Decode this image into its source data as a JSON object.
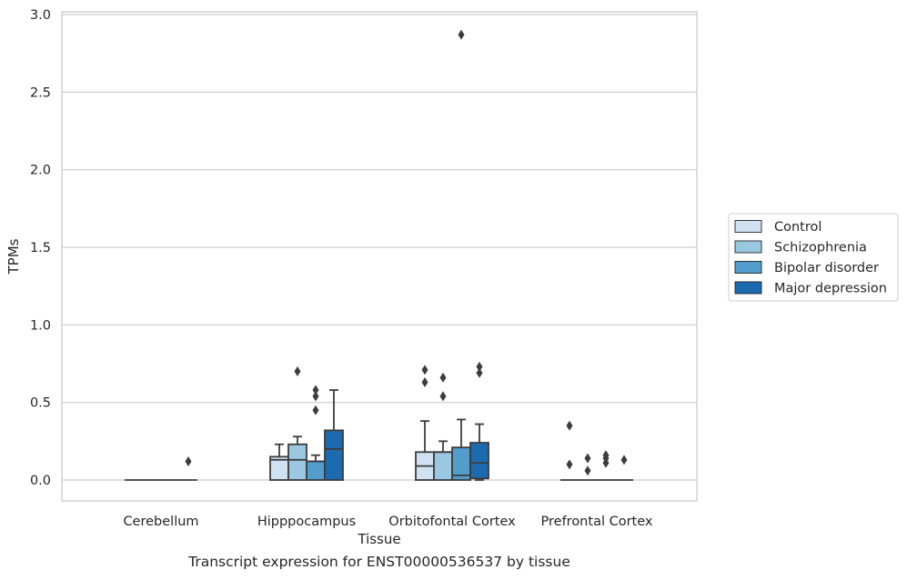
{
  "chart_data": {
    "type": "box",
    "title": "",
    "caption": "Transcript expression for ENST00000536537 by tissue",
    "xlabel": "Tissue",
    "ylabel": "TPMs",
    "ylim": [
      -0.13,
      3.03
    ],
    "yticks": [
      "0.0",
      "0.5",
      "1.0",
      "1.5",
      "2.0",
      "2.5",
      "3.0"
    ],
    "categories": [
      "Cerebellum",
      "Hipppocampus",
      "Orbitofontal Cortex",
      "Prefrontal Cortex"
    ],
    "grid": true,
    "legend_position": "right",
    "series": [
      {
        "name": "Control",
        "color": "#d0e1f2",
        "boxes": [
          {
            "q1": 0,
            "median": 0,
            "q3": 0,
            "whislo": 0,
            "whishi": 0,
            "fliers": []
          },
          {
            "q1": 0,
            "median": 0.13,
            "q3": 0.15,
            "whislo": 0,
            "whishi": 0.23,
            "fliers": []
          },
          {
            "q1": 0,
            "median": 0.09,
            "q3": 0.18,
            "whislo": 0,
            "whishi": 0.38,
            "fliers": [
              0.63,
              0.71
            ]
          },
          {
            "q1": 0,
            "median": 0,
            "q3": 0,
            "whislo": 0,
            "whishi": 0,
            "fliers": [
              0.35,
              0.1
            ]
          }
        ]
      },
      {
        "name": "Schizophrenia",
        "color": "#9ac8e0",
        "boxes": [
          {
            "q1": 0,
            "median": 0,
            "q3": 0,
            "whislo": 0,
            "whishi": 0,
            "fliers": []
          },
          {
            "q1": 0,
            "median": 0.13,
            "q3": 0.23,
            "whislo": 0,
            "whishi": 0.28,
            "fliers": [
              0.7
            ]
          },
          {
            "q1": 0,
            "median": 0.18,
            "q3": 0.18,
            "whislo": 0,
            "whishi": 0.25,
            "fliers": [
              0.54,
              0.66
            ]
          },
          {
            "q1": 0,
            "median": 0,
            "q3": 0,
            "whislo": 0,
            "whishi": 0,
            "fliers": [
              0.14,
              0.06
            ]
          }
        ]
      },
      {
        "name": "Bipolar disorder",
        "color": "#529dcc",
        "boxes": [
          {
            "q1": 0,
            "median": 0,
            "q3": 0,
            "whislo": 0,
            "whishi": 0,
            "fliers": []
          },
          {
            "q1": 0,
            "median": 0.12,
            "q3": 0.12,
            "whislo": 0,
            "whishi": 0.16,
            "fliers": [
              0.45,
              0.54,
              0.58
            ]
          },
          {
            "q1": 0,
            "median": 0.03,
            "q3": 0.21,
            "whislo": 0,
            "whishi": 0.39,
            "fliers": [
              2.87
            ]
          },
          {
            "q1": 0,
            "median": 0,
            "q3": 0,
            "whislo": 0,
            "whishi": 0,
            "fliers": [
              0.16,
              0.14,
              0.11
            ]
          }
        ]
      },
      {
        "name": "Major depression",
        "color": "#1c6aaf",
        "boxes": [
          {
            "q1": 0,
            "median": 0,
            "q3": 0,
            "whislo": 0,
            "whishi": 0,
            "fliers": [
              0.12
            ]
          },
          {
            "q1": 0,
            "median": 0.2,
            "q3": 0.32,
            "whislo": 0,
            "whishi": 0.58,
            "fliers": []
          },
          {
            "q1": 0.01,
            "median": 0.11,
            "q3": 0.24,
            "whislo": 0,
            "whishi": 0.36,
            "fliers": [
              0.69,
              0.73
            ]
          },
          {
            "q1": 0,
            "median": 0,
            "q3": 0,
            "whislo": 0,
            "whishi": 0,
            "fliers": [
              0.13
            ]
          }
        ]
      }
    ]
  }
}
